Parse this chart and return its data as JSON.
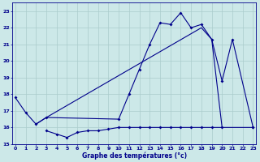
{
  "title": "Graphe des températures (°c)",
  "bg_color": "#cce8e8",
  "grid_color": "#aacccc",
  "line_color": "#00008b",
  "xlim": [
    -0.3,
    23.3
  ],
  "ylim": [
    15.0,
    23.5
  ],
  "yticks": [
    15,
    16,
    17,
    18,
    19,
    20,
    21,
    22,
    23
  ],
  "xticks": [
    0,
    1,
    2,
    3,
    4,
    5,
    6,
    7,
    8,
    9,
    10,
    11,
    12,
    13,
    14,
    15,
    16,
    17,
    18,
    19,
    20,
    21,
    22,
    23
  ],
  "s1x": [
    0,
    1,
    2,
    3,
    10,
    11,
    12,
    13,
    14,
    15,
    16,
    17,
    18,
    19,
    20,
    21,
    23
  ],
  "s1y": [
    17.8,
    16.9,
    16.2,
    16.6,
    16.5,
    18.0,
    19.5,
    21.0,
    22.3,
    22.2,
    22.9,
    22.0,
    22.2,
    21.3,
    18.8,
    21.3,
    16.0
  ],
  "s2x": [
    2,
    3,
    18,
    19,
    20
  ],
  "s2y": [
    16.2,
    16.6,
    22.0,
    21.3,
    16.0
  ],
  "s3x": [
    3,
    4,
    5,
    6,
    7,
    8,
    9,
    10,
    11,
    12,
    13,
    14,
    15,
    16,
    17,
    18,
    19,
    20,
    23
  ],
  "s3y": [
    15.8,
    15.6,
    15.4,
    15.7,
    15.8,
    15.8,
    15.9,
    16.0,
    16.0,
    16.0,
    16.0,
    16.0,
    16.0,
    16.0,
    16.0,
    16.0,
    16.0,
    16.0,
    16.0
  ]
}
